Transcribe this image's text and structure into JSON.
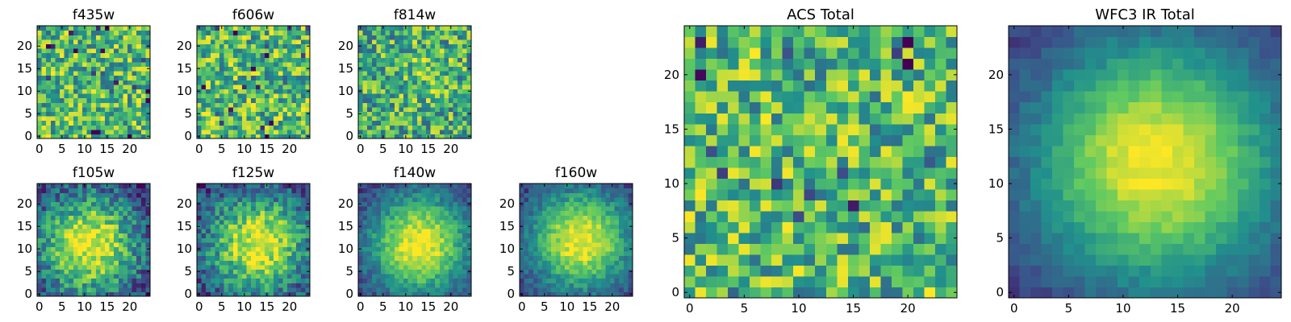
{
  "figure": {
    "description_type": "multi-panel image grid",
    "colormap": "viridis",
    "colormap_stops": [
      "#440154",
      "#3b528b",
      "#21918c",
      "#5ec962",
      "#fde725"
    ]
  },
  "chart_data": [
    {
      "type": "heatmap",
      "title": "f435w",
      "grid_size": 25,
      "pattern": "noise",
      "noise_level": "high",
      "xticks": [
        "0",
        "5",
        "10",
        "15",
        "20"
      ],
      "yticks": [
        "0",
        "5",
        "10",
        "15",
        "20"
      ],
      "xlim": [
        0,
        24
      ],
      "ylim": [
        0,
        24
      ]
    },
    {
      "type": "heatmap",
      "title": "f606w",
      "grid_size": 25,
      "pattern": "noise",
      "noise_level": "high",
      "xticks": [
        "0",
        "5",
        "10",
        "15",
        "20"
      ],
      "yticks": [
        "0",
        "5",
        "10",
        "15",
        "20"
      ],
      "xlim": [
        0,
        24
      ],
      "ylim": [
        0,
        24
      ]
    },
    {
      "type": "heatmap",
      "title": "f814w",
      "grid_size": 25,
      "pattern": "noise_faint_source",
      "noise_level": "high",
      "xticks": [
        "0",
        "5",
        "10",
        "15",
        "20"
      ],
      "yticks": [
        "0",
        "5",
        "10",
        "15",
        "20"
      ],
      "xlim": [
        0,
        24
      ],
      "ylim": [
        0,
        24
      ]
    },
    {
      "type": "heatmap",
      "title": "f105w",
      "grid_size": 25,
      "pattern": "centered_source",
      "noise_level": "medium",
      "source_center": [
        11,
        11
      ],
      "xticks": [
        "0",
        "5",
        "10",
        "15",
        "20"
      ],
      "yticks": [
        "0",
        "5",
        "10",
        "15",
        "20"
      ],
      "xlim": [
        0,
        24
      ],
      "ylim": [
        0,
        24
      ]
    },
    {
      "type": "heatmap",
      "title": "f125w",
      "grid_size": 25,
      "pattern": "centered_source",
      "noise_level": "medium",
      "source_center": [
        13,
        11
      ],
      "xticks": [
        "0",
        "5",
        "10",
        "15",
        "20"
      ],
      "yticks": [
        "0",
        "5",
        "10",
        "15",
        "20"
      ],
      "xlim": [
        0,
        24
      ],
      "ylim": [
        0,
        24
      ]
    },
    {
      "type": "heatmap",
      "title": "f140w",
      "grid_size": 25,
      "pattern": "centered_source",
      "noise_level": "low",
      "source_center": [
        13,
        11
      ],
      "xticks": [
        "0",
        "5",
        "10",
        "15",
        "20"
      ],
      "yticks": [
        "0",
        "5",
        "10",
        "15",
        "20"
      ],
      "xlim": [
        0,
        24
      ],
      "ylim": [
        0,
        24
      ]
    },
    {
      "type": "heatmap",
      "title": "f160w",
      "grid_size": 25,
      "pattern": "centered_source",
      "noise_level": "low",
      "source_center": [
        13,
        12
      ],
      "xticks": [
        "0",
        "5",
        "10",
        "15",
        "20"
      ],
      "yticks": [
        "0",
        "5",
        "10",
        "15",
        "20"
      ],
      "xlim": [
        0,
        24
      ],
      "ylim": [
        0,
        24
      ]
    },
    {
      "type": "heatmap",
      "title": "ACS Total",
      "grid_size": 25,
      "pattern": "noise",
      "noise_level": "high",
      "xticks": [
        "0",
        "5",
        "10",
        "15",
        "20"
      ],
      "yticks": [
        "0",
        "5",
        "10",
        "15",
        "20"
      ],
      "xlim": [
        0,
        24
      ],
      "ylim": [
        0,
        24
      ]
    },
    {
      "type": "heatmap",
      "title": "WFC3 IR Total",
      "grid_size": 25,
      "pattern": "centered_source",
      "noise_level": "very_low",
      "source_center": [
        13,
        12
      ],
      "xticks": [
        "0",
        "5",
        "10",
        "15",
        "20"
      ],
      "yticks": [
        "0",
        "5",
        "10",
        "15",
        "20"
      ],
      "xlim": [
        0,
        24
      ],
      "ylim": [
        0,
        24
      ]
    }
  ]
}
